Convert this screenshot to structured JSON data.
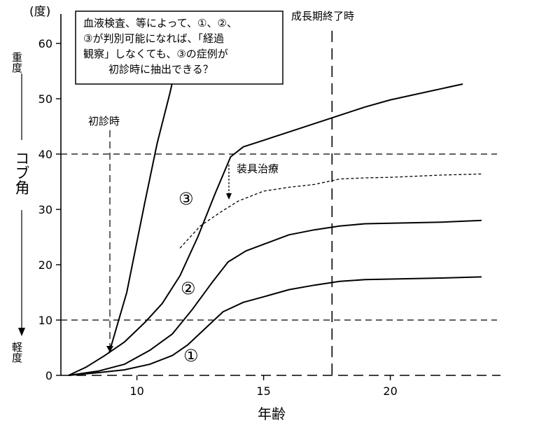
{
  "chart_data": {
    "type": "line",
    "xlabel": "年齢",
    "ylabel": {
      "unit": "(度)",
      "top": "重度",
      "middle": "コブ角",
      "bottom": "軽度"
    },
    "xlim": [
      7,
      24
    ],
    "ylim": [
      0,
      60
    ],
    "x_ticks": [
      10,
      15,
      20
    ],
    "y_ticks": [
      0,
      10,
      20,
      30,
      40,
      50,
      60
    ],
    "grid": false,
    "series": [
      {
        "name": "①",
        "style": "solid",
        "points": [
          [
            7.3,
            0.0
          ],
          [
            8.5,
            0.5
          ],
          [
            9.5,
            1.0
          ],
          [
            10.5,
            2.0
          ],
          [
            11.4,
            3.6
          ],
          [
            12,
            5.5
          ],
          [
            12.7,
            8.5
          ],
          [
            13.4,
            11.5
          ],
          [
            14.2,
            13.2
          ],
          [
            15,
            14.2
          ],
          [
            16,
            15.5
          ],
          [
            17,
            16.3
          ],
          [
            18,
            17.0
          ],
          [
            19,
            17.3
          ],
          [
            20,
            17.4
          ],
          [
            22,
            17.6
          ],
          [
            23.6,
            17.8
          ]
        ]
      },
      {
        "name": "②",
        "style": "solid",
        "points": [
          [
            7.3,
            0.0
          ],
          [
            8.5,
            0.8
          ],
          [
            9.5,
            2.0
          ],
          [
            10.5,
            4.5
          ],
          [
            11.4,
            7.5
          ],
          [
            12.2,
            12.0
          ],
          [
            13,
            17.0
          ],
          [
            13.6,
            20.5
          ],
          [
            14.3,
            22.5
          ],
          [
            15,
            23.7
          ],
          [
            16,
            25.4
          ],
          [
            17,
            26.3
          ],
          [
            18,
            27.0
          ],
          [
            19,
            27.4
          ],
          [
            20,
            27.5
          ],
          [
            22,
            27.7
          ],
          [
            23.6,
            28.0
          ]
        ]
      },
      {
        "name": "③",
        "style": "solid",
        "points": [
          [
            7.3,
            0.0
          ],
          [
            8,
            1.5
          ],
          [
            8.7,
            3.5
          ],
          [
            9.5,
            6.0
          ],
          [
            10.3,
            9.5
          ],
          [
            11,
            13.0
          ],
          [
            11.7,
            18.0
          ],
          [
            12.4,
            25.0
          ],
          [
            13.1,
            33.0
          ],
          [
            13.7,
            39.5
          ],
          [
            14.2,
            41.3
          ],
          [
            15,
            42.5
          ],
          [
            16,
            44.0
          ],
          [
            17,
            45.5
          ],
          [
            18,
            47.0
          ],
          [
            19,
            48.5
          ],
          [
            20,
            49.8
          ],
          [
            22,
            51.8
          ],
          [
            23.2,
            53.0
          ]
        ]
      },
      {
        "name": "装具治療",
        "style": "dashed",
        "points": [
          [
            11.7,
            23.0
          ],
          [
            12.5,
            27.0
          ],
          [
            13.3,
            29.5
          ],
          [
            14,
            31.5
          ],
          [
            15,
            33.3
          ],
          [
            16,
            34.0
          ],
          [
            17,
            34.5
          ],
          [
            18,
            35.5
          ],
          [
            19,
            35.7
          ],
          [
            20,
            35.8
          ],
          [
            22,
            36.2
          ],
          [
            23.6,
            36.4
          ]
        ]
      },
      {
        "name": "",
        "style": "solid",
        "points": [
          [
            8.9,
            4.0
          ],
          [
            9.6,
            15.0
          ],
          [
            10.3,
            31.0
          ],
          [
            10.8,
            42.0
          ],
          [
            11.3,
            51.0
          ],
          [
            11.6,
            57.0
          ],
          [
            12.0,
            65.5
          ]
        ]
      }
    ],
    "reference_lines": [
      {
        "axis": "y",
        "value": 40,
        "style": "dashed"
      },
      {
        "axis": "y",
        "value": 10,
        "style": "dashed"
      },
      {
        "axis": "x",
        "value": 8.7,
        "style": "dashed"
      },
      {
        "axis": "x",
        "value": 17.7,
        "style": "dashed"
      }
    ],
    "annotations": {
      "callout": [
        "血液検査、等によって、①、②、",
        "③が判別可能になれば、「経過",
        "観察」しなくても、③の症例が",
        "初診時に抽出できる？"
      ],
      "first_visit": "初診時",
      "growth_end": "成長期終了時",
      "brace_treatment": "装具治療",
      "labels": [
        "①",
        "②",
        "③"
      ]
    }
  }
}
